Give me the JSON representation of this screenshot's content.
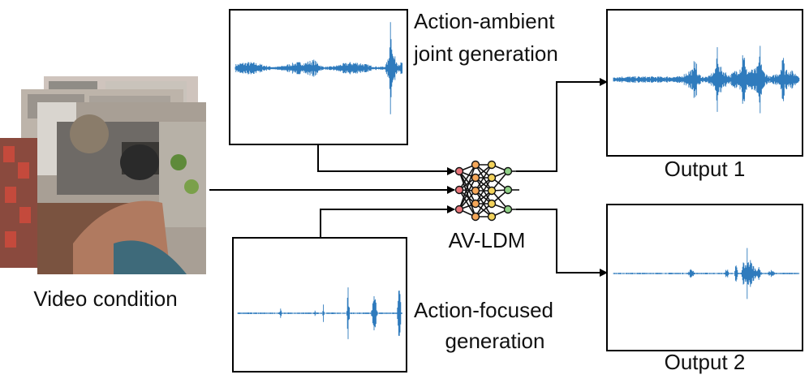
{
  "labels": {
    "video_condition": "Video condition",
    "ambient_line1": "Action-ambient",
    "ambient_line2": "joint generation",
    "model": "AV-LDM",
    "focused_line1": "Action-focused",
    "focused_line2": "generation",
    "output1": "Output 1",
    "output2": "Output 2"
  },
  "colors": {
    "waveform": "#2f7bbd",
    "line": "#000000",
    "node_red": "#e8757a",
    "node_orange": "#f5a85a",
    "node_yellow": "#f2d25b",
    "node_green": "#8fcf86"
  },
  "icons": {
    "model": "neural-network-icon",
    "video": "video-frames-stack"
  }
}
